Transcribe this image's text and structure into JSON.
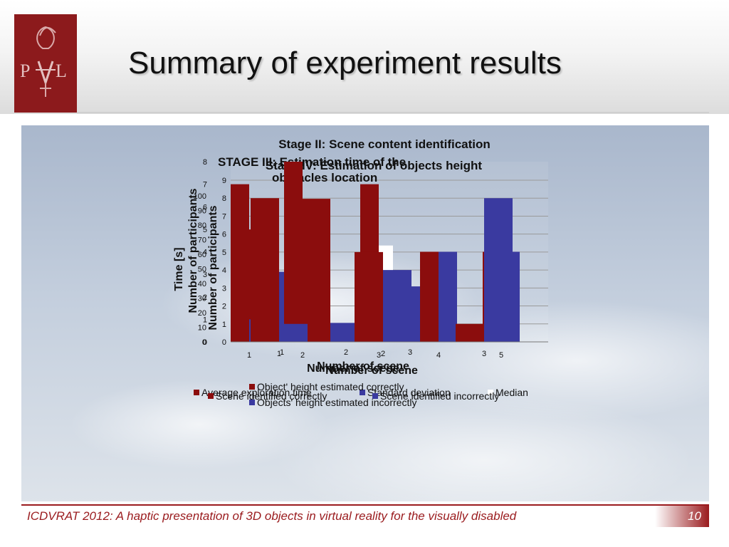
{
  "slide": {
    "title": "Summary of experiment results",
    "footer": "ICDVRAT 2012: A haptic presentation of 3D objects in virtual reality for the visually disabled",
    "page_number": "10"
  },
  "logo": {
    "icon": "pl-university-logo-icon",
    "color": "#8c1a1c"
  },
  "colors": {
    "maroon": "#8b0d0d",
    "blue": "#3a3aa0",
    "white": "#ffffff",
    "footer": "#9a1b1e"
  },
  "chart_data": [
    {
      "type": "bar",
      "title": "STAGE III: Estimation time of the obstacles location",
      "xlabel": "Number of scene",
      "ylabel": "Time [s]",
      "categories": [
        "1",
        "2",
        "3"
      ],
      "y_ticks": [
        "0",
        "10",
        "20",
        "30",
        "40",
        "50",
        "60",
        "70",
        "80",
        "90",
        "100"
      ],
      "ylim": [
        0,
        100
      ],
      "series": [
        {
          "name": "Average exploration time",
          "color": "#8b0d0d",
          "values": [
            77,
            98,
            40
          ]
        },
        {
          "name": "Standard deviation",
          "color": "#3a3aa0",
          "values": [
            48,
            13,
            38
          ]
        },
        {
          "name": "Median",
          "color": "#ffffff",
          "values": [
            71,
            66,
            25
          ]
        }
      ]
    },
    {
      "type": "bar",
      "title": "Stage II: Scene content identification",
      "xlabel": "Number of scene",
      "ylabel": "Number of participants",
      "categories": [
        "1",
        "2",
        "3",
        "4",
        "5"
      ],
      "y_ticks": [
        "0",
        "1",
        "2",
        "3",
        "4",
        "5",
        "6",
        "7",
        "8"
      ],
      "ylim": [
        0,
        8
      ],
      "series": [
        {
          "name": "Scene identified correctly",
          "color": "#8b0d0d",
          "values": [
            7,
            8,
            7,
            4,
            4
          ]
        },
        {
          "name": "Scene identified incorrectly",
          "color": "#3a3aa0",
          "values": [
            1,
            0,
            1,
            4,
            4
          ]
        }
      ]
    },
    {
      "type": "bar",
      "title": "Stage IV: Estimation of objects height",
      "xlabel": "Number of scene",
      "ylabel": "Number of participants",
      "categories": [
        "1",
        "2",
        "3"
      ],
      "y_ticks": [
        "0",
        "1",
        "2",
        "3",
        "4",
        "5",
        "6",
        "7",
        "8",
        "9"
      ],
      "ylim": [
        0,
        9
      ],
      "series": [
        {
          "name": "Object' height estimated correctly",
          "color": "#8b0d0d",
          "values": [
            8,
            5,
            1
          ]
        },
        {
          "name": "Objects' height estimated incorrectly",
          "color": "#3a3aa0",
          "values": [
            1,
            4,
            8
          ]
        }
      ]
    }
  ]
}
